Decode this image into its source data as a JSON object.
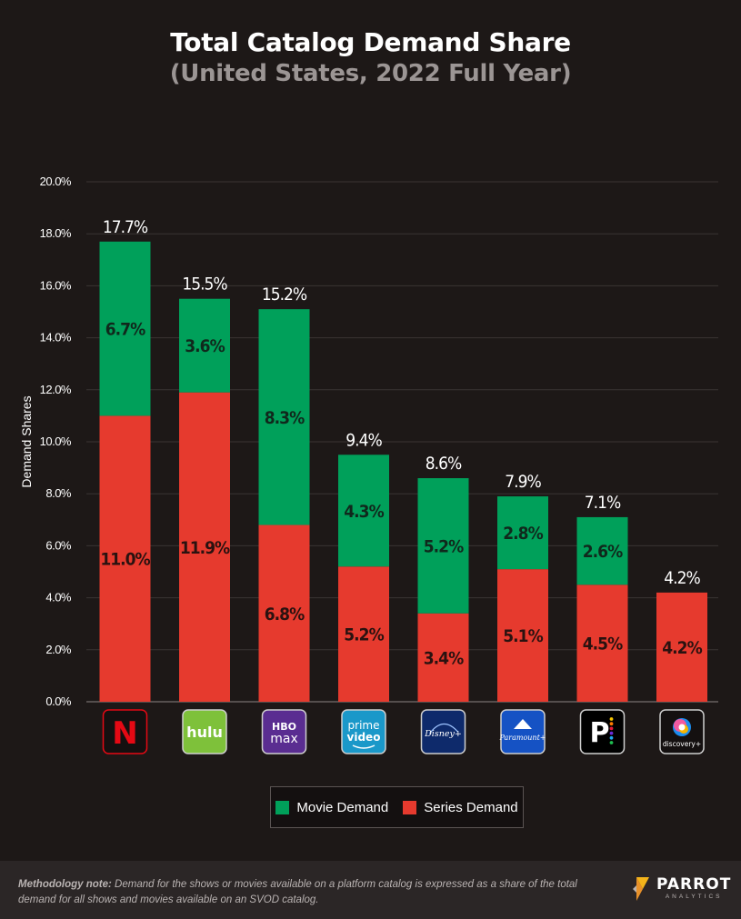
{
  "header": {
    "title": "Total Catalog Demand Share",
    "subtitle": "(United States, 2022 Full Year)"
  },
  "chart_data": {
    "type": "bar",
    "stacked": true,
    "title": "Total Catalog Demand Share",
    "subtitle": "(United States, 2022 Full Year)",
    "xlabel": "",
    "ylabel": "Demand Shares",
    "ylim": [
      0,
      20
    ],
    "yticks": [
      "0.0%",
      "2.0%",
      "4.0%",
      "6.0%",
      "8.0%",
      "10.0%",
      "12.0%",
      "14.0%",
      "16.0%",
      "18.0%",
      "20.0%"
    ],
    "categories": [
      "Netflix",
      "Hulu",
      "HBO Max",
      "Prime Video",
      "Disney+",
      "Paramount+",
      "Peacock",
      "discovery+"
    ],
    "series": [
      {
        "name": "Series Demand",
        "color": "#e63a2e",
        "values": [
          11.0,
          11.9,
          6.8,
          5.2,
          3.4,
          5.1,
          4.5,
          4.2
        ],
        "labels": [
          "11.0%",
          "11.9%",
          "6.8%",
          "5.2%",
          "3.4%",
          "5.1%",
          "4.5%",
          "4.2%"
        ]
      },
      {
        "name": "Movie Demand",
        "color": "#00a05a",
        "values": [
          6.7,
          3.6,
          8.3,
          4.3,
          5.2,
          2.8,
          2.6,
          0
        ],
        "labels": [
          "6.7%",
          "3.6%",
          "8.3%",
          "4.3%",
          "5.2%",
          "2.8%",
          "2.6%",
          ""
        ]
      }
    ],
    "totals": [
      17.7,
      15.5,
      15.2,
      9.4,
      8.6,
      7.9,
      7.1,
      4.2
    ],
    "total_labels": [
      "17.7%",
      "15.5%",
      "15.2%",
      "9.4%",
      "8.6%",
      "7.9%",
      "7.1%",
      "4.2%"
    ],
    "grid": true,
    "legend_position": "bottom-center"
  },
  "platforms": [
    {
      "name": "Netflix",
      "logo_text": "N",
      "icon": "netflix-logo-icon",
      "color": "#e50914",
      "bg": "#141010"
    },
    {
      "name": "Hulu",
      "logo_text": "hulu",
      "icon": "hulu-logo-icon",
      "color": "#ffffff",
      "bg": "#7ec13a"
    },
    {
      "name": "HBO Max",
      "logo_text_1": "HBO",
      "logo_text_2": "max",
      "icon": "hbo-max-logo-icon",
      "color": "#ffffff",
      "bg": "#5a2d91"
    },
    {
      "name": "Prime Video",
      "logo_text_1": "prime",
      "logo_text_2": "video",
      "icon": "prime-video-logo-icon",
      "color": "#ffffff",
      "bg": "#1a98c9"
    },
    {
      "name": "Disney+",
      "logo_text": "Disney+",
      "icon": "disney-plus-logo-icon",
      "color": "#ffffff",
      "bg": "#0e2a6b"
    },
    {
      "name": "Paramount+",
      "logo_text": "Paramount+",
      "icon": "paramount-plus-logo-icon",
      "color": "#ffffff",
      "bg": "#1552c4"
    },
    {
      "name": "Peacock",
      "logo_text": "P",
      "icon": "peacock-logo-icon",
      "color": "#ffffff",
      "bg": "#000000"
    },
    {
      "name": "discovery+",
      "logo_text": "discovery+",
      "icon": "discovery-plus-logo-icon",
      "color": "#ffffff",
      "bg": "#141010"
    }
  ],
  "legend": {
    "movie_label": "Movie Demand",
    "series_label": "Series Demand",
    "movie_color": "#00a05a",
    "series_color": "#e63a2e"
  },
  "footer": {
    "note_label": "Methodology note:",
    "note_text": " Demand for the shows or movies available on a platform catalog is expressed as a share of the total demand for all shows and movies available on an SVOD catalog.",
    "brand_name": "PARROT",
    "brand_sub": "ANALYTICS"
  }
}
